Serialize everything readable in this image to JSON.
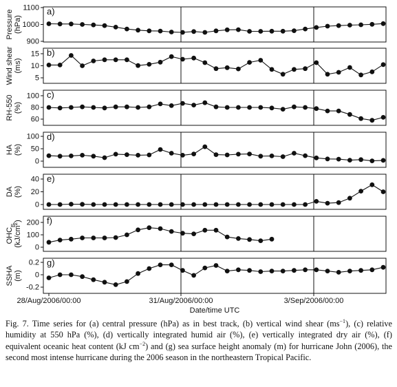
{
  "figure": {
    "xlabel": "Date/time UTC",
    "xticks": [
      "28/Aug/2006/00:00",
      "31/Aug/2006/00:00",
      "3/Sep/2006/00:00"
    ]
  },
  "chart_data": [
    {
      "type": "line",
      "panel": "a)",
      "ylabel": [
        "Pressure",
        "(hPa)"
      ],
      "ylim": [
        900,
        1100
      ],
      "yticks": [
        "1100",
        "1000",
        "900"
      ],
      "values": [
        1004,
        1003,
        1003,
        1000,
        997,
        993,
        984,
        973,
        966,
        962,
        961,
        955,
        953,
        958,
        953,
        962,
        968,
        969,
        959,
        959,
        960,
        960,
        963,
        973,
        982,
        990,
        993,
        996,
        998,
        1001,
        1005
      ]
    },
    {
      "type": "line",
      "panel": "b)",
      "ylabel": [
        "Wind shear",
        "(ms)"
      ],
      "ylim": [
        5,
        15
      ],
      "yticks": [
        "15",
        "10",
        "5"
      ],
      "values": [
        10.3,
        10.3,
        14.3,
        10,
        12,
        12.5,
        12.5,
        12.5,
        10.1,
        10.6,
        11.5,
        13.8,
        12.7,
        13.2,
        11.3,
        8.8,
        9.2,
        8.7,
        11.4,
        12.3,
        8.5,
        6.5,
        8.5,
        8.8,
        11.3,
        6.5,
        7.3,
        9.3,
        6.2,
        7.5,
        10.5
      ]
    },
    {
      "type": "line",
      "panel": "c)",
      "ylabel": [
        "RH-550",
        "(%)"
      ],
      "ylim": [
        60,
        100
      ],
      "yticks": [
        "100",
        "80",
        "60"
      ],
      "values": [
        80,
        79,
        80,
        81,
        80,
        79,
        81,
        81,
        80,
        81,
        86,
        83,
        87,
        84,
        88,
        81,
        80,
        80,
        80,
        80,
        79,
        77,
        81,
        80,
        78,
        74,
        74,
        68,
        61,
        58,
        63
      ]
    },
    {
      "type": "line",
      "panel": "d)",
      "ylabel": [
        "HA",
        "(%)"
      ],
      "ylim": [
        0,
        100
      ],
      "yticks": [
        "100",
        "50",
        "0"
      ],
      "values": [
        22,
        20,
        21,
        24,
        20,
        14,
        28,
        26,
        24,
        25,
        47,
        32,
        24,
        29,
        58,
        26,
        25,
        28,
        29,
        20,
        21,
        18,
        32,
        22,
        13,
        9,
        8,
        4,
        6,
        1,
        3
      ]
    },
    {
      "type": "line",
      "panel": "e)",
      "ylabel": [
        "DA",
        "(%)"
      ],
      "ylim": [
        0,
        40
      ],
      "yticks": [
        "40",
        "20",
        "0"
      ],
      "values": [
        0,
        0,
        0.5,
        0.3,
        0,
        0,
        0,
        0,
        0,
        0,
        0,
        0,
        0,
        0,
        0,
        0,
        0,
        0,
        0,
        0,
        0,
        0,
        0,
        0,
        5,
        2,
        3,
        10,
        21,
        31,
        20
      ]
    },
    {
      "type": "line",
      "panel": "f)",
      "ylabel": [
        "OHC",
        "(kJ/cm)"
      ],
      "ylabel_sub": "E",
      "ylabel_sup": "2",
      "ylim": [
        0,
        200
      ],
      "yticks": [
        "200",
        "100",
        "0"
      ],
      "values": [
        40,
        58,
        65,
        75,
        75,
        75,
        78,
        100,
        140,
        157,
        150,
        127,
        113,
        108,
        137,
        137,
        83,
        70,
        62,
        52,
        65
      ]
    },
    {
      "type": "line",
      "panel": "g)",
      "ylabel": [
        "SSHA"
      ],
      "ylabel_sub2": "(m)",
      "ylim": [
        -0.2,
        0.2
      ],
      "yticks": [
        "0.2",
        "0",
        "-0.2"
      ],
      "values": [
        -0.05,
        0,
        0,
        -0.03,
        -0.08,
        -0.12,
        -0.16,
        -0.11,
        0.02,
        0.1,
        0.16,
        0.16,
        0.07,
        -0.01,
        0.11,
        0.15,
        0.06,
        0.08,
        0.07,
        0.05,
        0.06,
        0.06,
        0.07,
        0.08,
        0.08,
        0.06,
        0.04,
        0.06,
        0.07,
        0.08,
        0.12
      ]
    }
  ],
  "caption": {
    "t1": "Fig. 7. Time series for (a) central pressure (hPa) as in best track, (b) vertical wind shear (ms",
    "t1sup": "−1",
    "t2": "), (c) relative humidity at 550 hPa (%), (d) vertically integrated humid air (%), (e) vertically integrated dry air (%), (f) equivalent oceanic heat content (kJ cm",
    "t2sup": "−2",
    "t3": ") and (g) sea surface height anomaly (m) for hurricane John (2006), the second most intense hurricane during the 2006 season in the northeastern Tropical Pacific."
  }
}
